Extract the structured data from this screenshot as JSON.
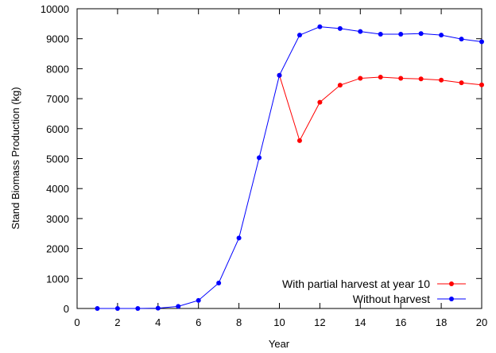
{
  "chart_data": {
    "type": "line",
    "title": "",
    "xlabel": "Year",
    "ylabel": "Stand Biomass Production (kg)",
    "xlim": [
      0,
      20
    ],
    "ylim": [
      0,
      10000
    ],
    "x_ticks": [
      "0",
      "2",
      "4",
      "6",
      "8",
      "10",
      "12",
      "14",
      "16",
      "18",
      "20"
    ],
    "y_ticks": [
      "0",
      "1000",
      "2000",
      "3000",
      "4000",
      "5000",
      "6000",
      "7000",
      "8000",
      "9000",
      "10000"
    ],
    "grid": false,
    "legend_position": "bottom-right",
    "series": [
      {
        "name": "With partial harvest at year 10",
        "color": "#ff0000",
        "x": [
          10,
          11,
          12,
          13,
          14,
          15,
          16,
          17,
          18,
          19,
          20
        ],
        "y": [
          7780,
          5600,
          6880,
          7450,
          7680,
          7720,
          7680,
          7660,
          7620,
          7530,
          7460
        ]
      },
      {
        "name": "Without harvest",
        "color": "#0000ff",
        "x": [
          1,
          2,
          3,
          4,
          5,
          6,
          7,
          8,
          9,
          10,
          11,
          12,
          13,
          14,
          15,
          16,
          17,
          18,
          19,
          20
        ],
        "y": [
          0,
          0,
          0,
          10,
          70,
          270,
          850,
          2350,
          5030,
          7780,
          9120,
          9400,
          9340,
          9240,
          9150,
          9150,
          9170,
          9120,
          8990,
          8900
        ]
      }
    ]
  }
}
